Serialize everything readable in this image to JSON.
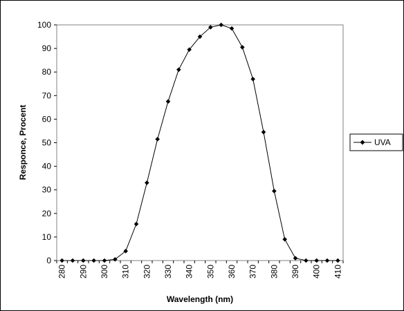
{
  "chart_data": {
    "type": "line",
    "title": "",
    "xlabel": "Wavelength (nm)",
    "ylabel": "Responce, Procent",
    "xlim": [
      280,
      410
    ],
    "ylim": [
      0,
      100
    ],
    "x_ticks": [
      "280",
      "290",
      "300",
      "310",
      "320",
      "330",
      "340",
      "350",
      "360",
      "370",
      "380",
      "390",
      "400",
      "410"
    ],
    "y_ticks": [
      "0",
      "10",
      "20",
      "30",
      "40",
      "50",
      "60",
      "70",
      "80",
      "90",
      "100"
    ],
    "grid": false,
    "legend_position": "right",
    "series": [
      {
        "name": "UVA",
        "color": "#000000",
        "marker": "diamond",
        "x": [
          280,
          285,
          290,
          295,
          300,
          305,
          310,
          315,
          320,
          325,
          330,
          335,
          340,
          345,
          350,
          355,
          360,
          365,
          370,
          375,
          380,
          385,
          390,
          395,
          400,
          405,
          410
        ],
        "y": [
          0,
          0,
          0,
          0,
          0,
          0.5,
          4,
          15.5,
          33,
          51.5,
          67.5,
          81,
          89.5,
          95,
          99,
          100,
          98.5,
          90.5,
          77,
          54.5,
          29.5,
          9,
          1,
          0,
          0,
          0,
          0
        ]
      }
    ]
  }
}
